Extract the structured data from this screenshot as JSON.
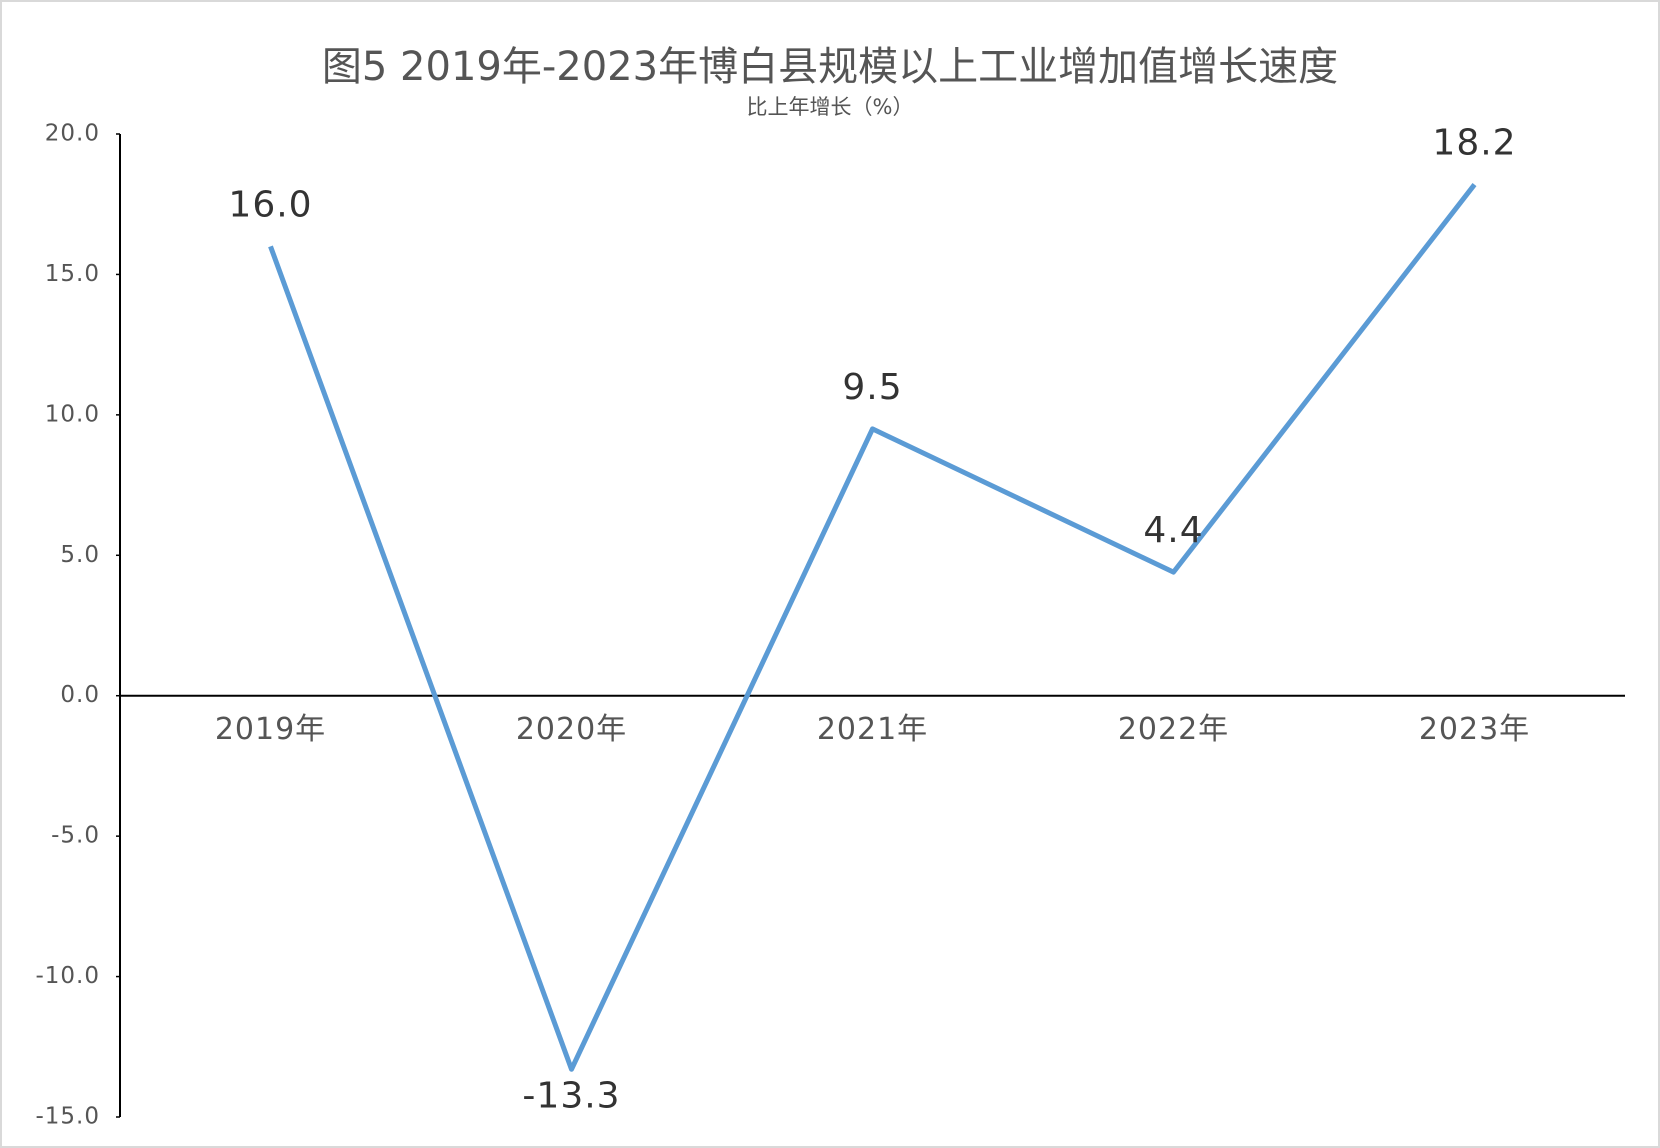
{
  "chart_data": {
    "type": "line",
    "title": "图5 2019年-2023年博白县规模以上工业增加值增长速度",
    "subtitle": "比上年增长（%）",
    "categories": [
      "2019年",
      "2020年",
      "2021年",
      "2022年",
      "2023年"
    ],
    "values": [
      16.0,
      -13.3,
      9.5,
      4.4,
      18.2
    ],
    "value_labels": [
      "16.0",
      "-13.3",
      "9.5",
      "4.4",
      "18.2"
    ],
    "color": "#5b9bd5",
    "ylim": [
      -15,
      20
    ],
    "yticks": [
      {
        "value": -15,
        "label": "-15.0"
      },
      {
        "value": -10,
        "label": "-10.0"
      },
      {
        "value": -5,
        "label": "-5.0"
      },
      {
        "value": 0,
        "label": "0.0"
      },
      {
        "value": 5,
        "label": "5.0"
      },
      {
        "value": 10,
        "label": "10.0"
      },
      {
        "value": 15,
        "label": "15.0"
      },
      {
        "value": 20,
        "label": "20.0"
      }
    ],
    "grid": false
  }
}
